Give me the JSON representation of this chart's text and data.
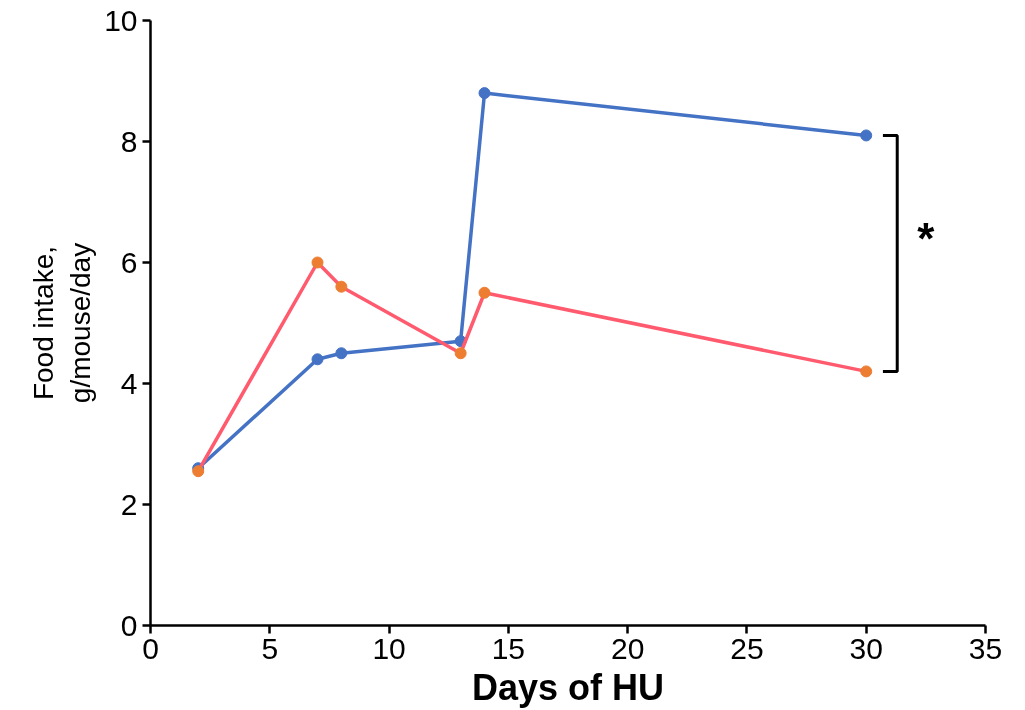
{
  "chart_data": {
    "type": "line",
    "xlabel": "Days of HU",
    "ylabel": "Food intake,\ng/mouse/day",
    "series": [
      {
        "color": "#4472c4",
        "x": [
          2,
          7,
          8,
          13,
          14,
          30
        ],
        "values": [
          2.6,
          4.4,
          4.5,
          4.7,
          8.8,
          8.1
        ]
      },
      {
        "color": "#ff5a6e",
        "x": [
          2,
          7,
          8,
          13,
          14,
          30
        ],
        "values": [
          2.55,
          6.0,
          5.6,
          4.5,
          5.5,
          4.2
        ],
        "colors": [
          "#ed7d31",
          "#ed7d31",
          "#ed7d31",
          "#ed7d31",
          "#ed7d31",
          "#ed7d31"
        ]
      }
    ],
    "xlim": [
      0,
      35
    ],
    "xticks": [
      0,
      5,
      10,
      15,
      20,
      25,
      30,
      35
    ],
    "ylim": [
      0,
      10
    ],
    "yticks": [
      0,
      2,
      4,
      6,
      8,
      10
    ],
    "grid": false,
    "marker": "circle",
    "line_style": "solid",
    "annotations": [
      "*"
    ]
  }
}
